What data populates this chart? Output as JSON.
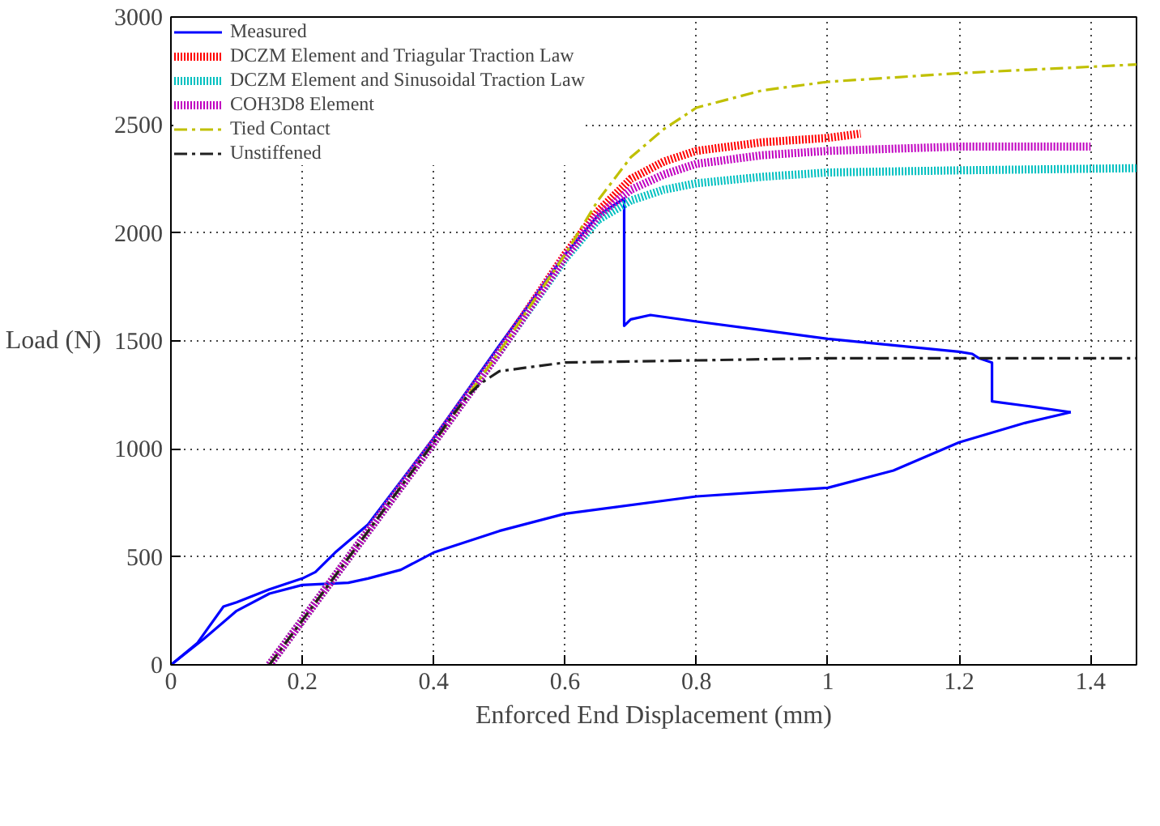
{
  "chart_data": {
    "type": "line",
    "xlabel": "Enforced End Displacement (mm)",
    "ylabel": "Load (N)",
    "xlim": [
      0,
      1.47
    ],
    "ylim": [
      0,
      3000
    ],
    "xticks": [
      0,
      0.2,
      0.4,
      0.6,
      0.8,
      1,
      1.2,
      1.4
    ],
    "yticks": [
      0,
      500,
      1000,
      1500,
      2000,
      2500,
      3000
    ],
    "grid": true,
    "legend": "top left",
    "marker": "none",
    "series": [
      {
        "name": "Measured",
        "color": "#0000ff",
        "line_style": "solid",
        "x": [
          0,
          0.04,
          0.08,
          0.1,
          0.15,
          0.2,
          0.22,
          0.25,
          0.3,
          0.4,
          0.5,
          0.6,
          0.65,
          0.69,
          0.69,
          0.7,
          0.73,
          0.8,
          0.9,
          1.0,
          1.1,
          1.2,
          1.22,
          1.23,
          1.25,
          1.25,
          1.3,
          1.37
        ],
        "values": [
          0,
          100,
          270,
          290,
          350,
          400,
          430,
          520,
          650,
          1050,
          1480,
          1900,
          2080,
          2160,
          1570,
          1600,
          1620,
          1590,
          1550,
          1510,
          1480,
          1450,
          1440,
          1420,
          1400,
          1220,
          1200,
          1170
        ]
      },
      {
        "color": "#0000ff",
        "line_style": "solid",
        "x": [
          0,
          0.05,
          0.1,
          0.15,
          0.2,
          0.27,
          0.3,
          0.35,
          0.4,
          0.5,
          0.6,
          0.8,
          0.9,
          1.0,
          1.1,
          1.2,
          1.3,
          1.37
        ],
        "values": [
          0,
          120,
          250,
          330,
          370,
          380,
          400,
          440,
          520,
          620,
          700,
          780,
          800,
          820,
          900,
          1030,
          1120,
          1170
        ]
      },
      {
        "name": "DCZM Element and Triagular Traction Law",
        "color": "#ff0000",
        "line_style": "dotted",
        "x": [
          0.15,
          0.4,
          0.5,
          0.6,
          0.65,
          0.7,
          0.75,
          0.8,
          0.9,
          1.0,
          1.05
        ],
        "values": [
          0,
          1030,
          1450,
          1900,
          2100,
          2250,
          2330,
          2380,
          2420,
          2440,
          2460
        ]
      },
      {
        "name": "DCZM Element and Sinusoidal Traction Law",
        "color": "#00c0c0",
        "line_style": "dotted",
        "x": [
          0.15,
          0.4,
          0.5,
          0.6,
          0.65,
          0.7,
          0.75,
          0.8,
          0.9,
          1.0,
          1.2,
          1.47
        ],
        "values": [
          0,
          1030,
          1450,
          1880,
          2060,
          2150,
          2200,
          2230,
          2260,
          2280,
          2290,
          2300
        ]
      },
      {
        "name": "COH3D8 Element",
        "color": "#c000c0",
        "line_style": "dotted",
        "x": [
          0.15,
          0.4,
          0.5,
          0.6,
          0.65,
          0.7,
          0.75,
          0.8,
          0.9,
          1.0,
          1.2,
          1.4
        ],
        "values": [
          0,
          1030,
          1450,
          1890,
          2080,
          2200,
          2270,
          2320,
          2360,
          2380,
          2400,
          2400
        ]
      },
      {
        "name": "Tied Contact",
        "color": "#c0c000",
        "line_style": "dashed",
        "x": [
          0.15,
          0.4,
          0.5,
          0.6,
          0.65,
          0.7,
          0.75,
          0.8,
          0.9,
          1.0,
          1.2,
          1.47
        ],
        "values": [
          0,
          1030,
          1450,
          1900,
          2150,
          2350,
          2480,
          2580,
          2660,
          2700,
          2740,
          2780
        ]
      },
      {
        "name": "Unstiffened",
        "color": "#202020",
        "line_style": "dashed",
        "x": [
          0.15,
          0.4,
          0.43,
          0.45,
          0.47,
          0.5,
          0.6,
          0.8,
          1.0,
          1.47
        ],
        "values": [
          0,
          1030,
          1160,
          1240,
          1300,
          1360,
          1400,
          1410,
          1420,
          1420
        ]
      }
    ]
  }
}
